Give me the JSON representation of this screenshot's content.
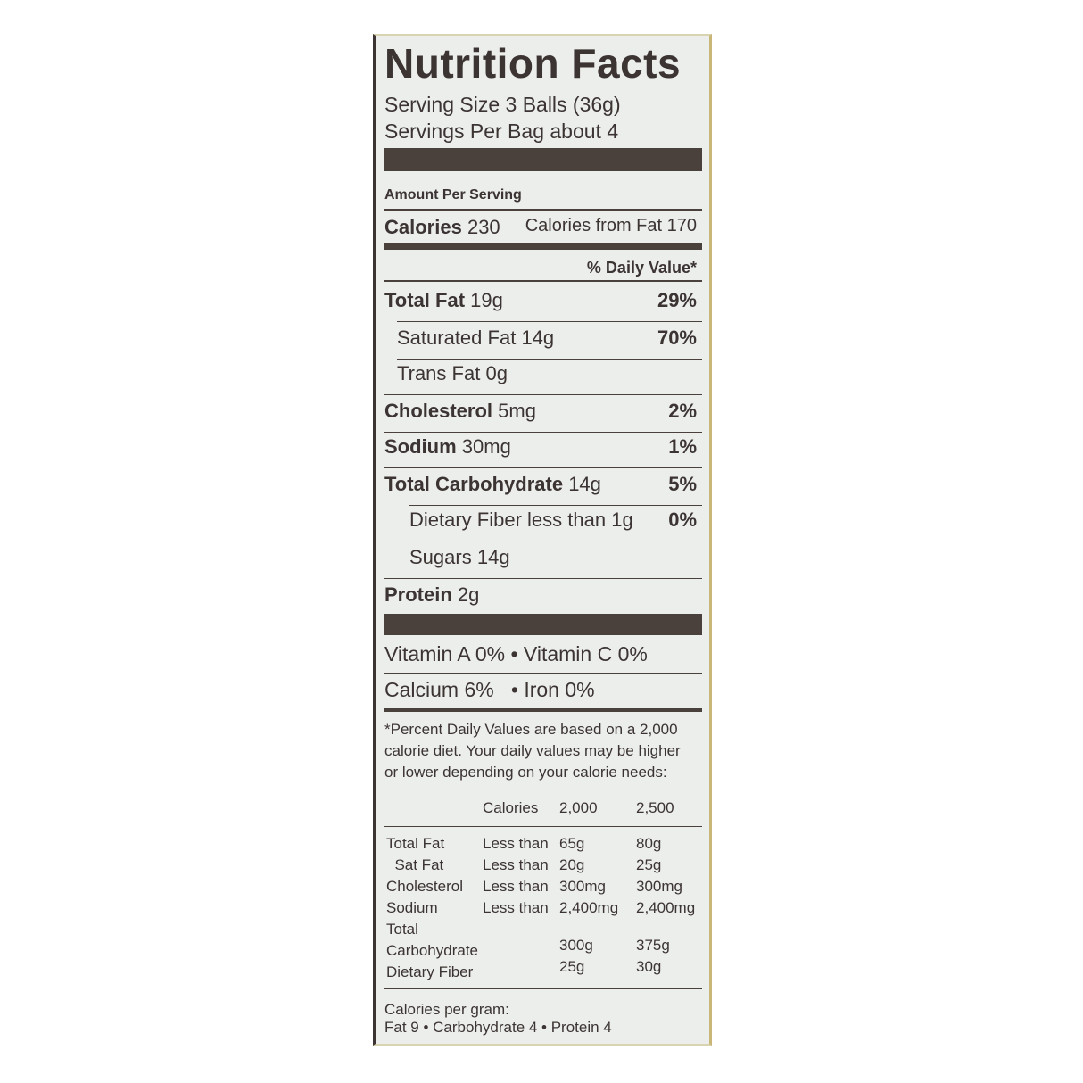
{
  "title": "Nutrition Facts",
  "serving_size": "Serving Size 3 Balls (36g)",
  "servings_per": "Servings Per Bag about 4",
  "amount_per_serving": "Amount Per Serving",
  "calories": {
    "label": "Calories",
    "value": "230",
    "from_fat": "Calories from Fat 170"
  },
  "dv_header": "% Daily Value*",
  "nutrients": [
    {
      "name": "Total Fat",
      "amount": "19g",
      "dv": "29%",
      "bold": true
    },
    {
      "name": "Saturated Fat",
      "amount": "14g",
      "dv": "70%",
      "bold": false
    },
    {
      "name": "Trans Fat",
      "amount": "0g",
      "dv": "",
      "bold": false
    },
    {
      "name": "Cholesterol",
      "amount": "5mg",
      "dv": "2%",
      "bold": true
    },
    {
      "name": "Sodium",
      "amount": "30mg",
      "dv": "1%",
      "bold": true
    },
    {
      "name": "Total Carbohydrate",
      "amount": "14g",
      "dv": "5%",
      "bold": true
    },
    {
      "name": "Dietary Fiber",
      "amount": "less than 1g",
      "dv": "0%",
      "bold": false
    },
    {
      "name": "Sugars",
      "amount": "14g",
      "dv": "",
      "bold": false
    },
    {
      "name": "Protein",
      "amount": "2g",
      "dv": "",
      "bold": true
    }
  ],
  "vitamins": {
    "row1": "Vitamin A 0% • Vitamin C 0%",
    "row2": "Calcium 6%   • Iron 0%"
  },
  "footnote": [
    "*Percent Daily Values are based on a 2,000",
    "calorie diet. Your daily values may be higher",
    "or lower depending on your calorie needs:"
  ],
  "dv_table": {
    "header": [
      "",
      "Calories",
      "2,000",
      "2,500"
    ],
    "rows": [
      [
        "Total Fat",
        "Less than",
        "65g",
        "80g"
      ],
      [
        "  Sat Fat",
        "Less than",
        "20g",
        "25g"
      ],
      [
        "Cholesterol",
        "Less than",
        "300mg",
        "300mg"
      ],
      [
        "Sodium",
        "Less than",
        "2,400mg",
        "2,400mg"
      ],
      [
        "Total",
        "",
        "",
        ""
      ],
      [
        "Carbohydrate",
        "",
        "300g",
        "375g"
      ],
      [
        "Dietary Fiber",
        "",
        "25g",
        "30g"
      ]
    ]
  },
  "calories_per_gram": {
    "label": "Calories per gram:",
    "values": "Fat 9 • Carbohydrate 4 • Protein 4"
  }
}
